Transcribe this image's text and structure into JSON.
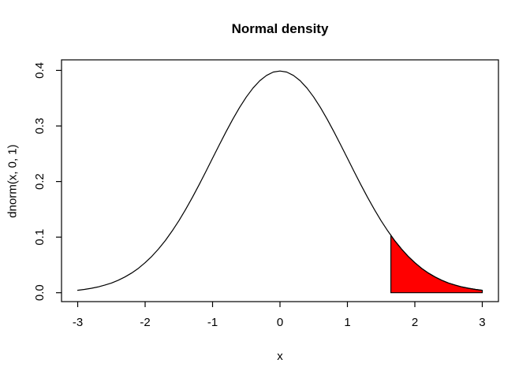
{
  "figure": {
    "background_color": "#FFFFFF",
    "foreground_color": "#000000"
  },
  "chart_data": {
    "type": "area",
    "title": "Normal density",
    "xlabel": "x",
    "ylabel": "dnorm(x, 0, 1)",
    "grid": false,
    "legend": null,
    "xlim": [
      -3.24,
      3.24
    ],
    "ylim": [
      -0.016,
      0.419
    ],
    "x_ticks": [
      -3,
      -2,
      -1,
      0,
      1,
      2,
      3
    ],
    "y_ticks": [
      "0.0",
      "0.1",
      "0.2",
      "0.3",
      "0.4"
    ],
    "distribution": {
      "name": "normal",
      "mean": 0,
      "sd": 1
    },
    "curve": {
      "color": "#000000",
      "x": [
        -3,
        -2.9,
        -2.8,
        -2.7,
        -2.6,
        -2.5,
        -2.4,
        -2.3,
        -2.2,
        -2.1,
        -2,
        -1.9,
        -1.8,
        -1.7,
        -1.6,
        -1.5,
        -1.4,
        -1.3,
        -1.2,
        -1.1,
        -1,
        -0.9,
        -0.8,
        -0.7,
        -0.6,
        -0.5,
        -0.4,
        -0.3,
        -0.2,
        -0.1,
        0,
        0.1,
        0.2,
        0.3,
        0.4,
        0.5,
        0.6,
        0.7,
        0.8,
        0.9,
        1,
        1.1,
        1.2,
        1.3,
        1.4,
        1.5,
        1.6,
        1.7,
        1.8,
        1.9,
        2,
        2.1,
        2.2,
        2.3,
        2.4,
        2.5,
        2.6,
        2.7,
        2.8,
        2.9,
        3
      ],
      "y": [
        0.0044,
        0.006,
        0.0079,
        0.0104,
        0.0136,
        0.0175,
        0.0224,
        0.0283,
        0.0355,
        0.044,
        0.054,
        0.0656,
        0.079,
        0.094,
        0.1109,
        0.1295,
        0.1497,
        0.1714,
        0.1942,
        0.2179,
        0.242,
        0.2661,
        0.2897,
        0.3123,
        0.3332,
        0.3521,
        0.3683,
        0.3814,
        0.391,
        0.397,
        0.3989,
        0.397,
        0.391,
        0.3814,
        0.3683,
        0.3521,
        0.3332,
        0.3123,
        0.2897,
        0.2661,
        0.242,
        0.2179,
        0.1942,
        0.1714,
        0.1497,
        0.1295,
        0.1109,
        0.094,
        0.079,
        0.0656,
        0.054,
        0.044,
        0.0355,
        0.0283,
        0.0224,
        0.0175,
        0.0136,
        0.0104,
        0.0079,
        0.006,
        0.0044
      ]
    },
    "shaded_region": {
      "from": 1.645,
      "to": 3,
      "density_at_from": 0.1031,
      "fill_color": "#FF0000",
      "border_color": "#000000"
    }
  }
}
